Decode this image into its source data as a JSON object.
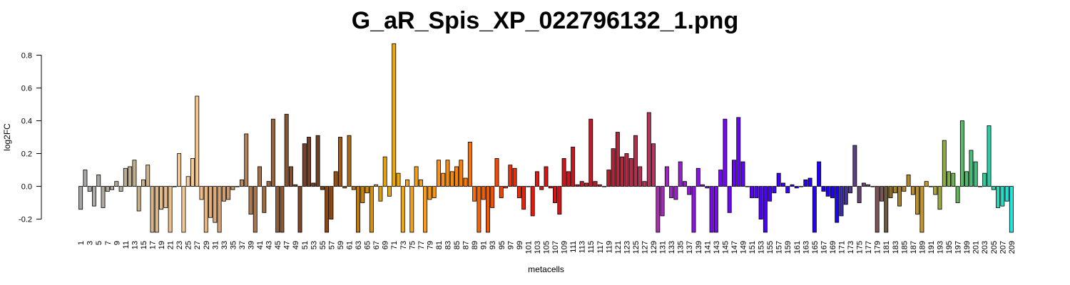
{
  "chart_data": {
    "type": "bar",
    "title": "G_aR_Spis_XP_022796132_1.png",
    "xlabel": "metacells",
    "ylabel": "log2FC",
    "ylim": [
      -0.28,
      0.88
    ],
    "yticks": [
      -0.2,
      0.0,
      0.2,
      0.4,
      0.6,
      0.8
    ],
    "ytick_labels": [
      "-0.2",
      "0.0",
      "0.2",
      "0.4",
      "0.6",
      "0.8"
    ],
    "grid": false,
    "legend": "none",
    "categories": [
      "1",
      "2",
      "3",
      "4",
      "5",
      "6",
      "7",
      "8",
      "9",
      "10",
      "11",
      "12",
      "13",
      "14",
      "15",
      "16",
      "17",
      "18",
      "19",
      "20",
      "21",
      "22",
      "23",
      "24",
      "25",
      "26",
      "27",
      "28",
      "29",
      "30",
      "31",
      "32",
      "33",
      "34",
      "35",
      "36",
      "37",
      "38",
      "39",
      "40",
      "41",
      "42",
      "43",
      "44",
      "45",
      "46",
      "47",
      "48",
      "49",
      "50",
      "51",
      "52",
      "53",
      "54",
      "55",
      "56",
      "57",
      "58",
      "59",
      "60",
      "61",
      "62",
      "63",
      "64",
      "65",
      "66",
      "67",
      "68",
      "69",
      "70",
      "71",
      "72",
      "73",
      "74",
      "75",
      "76",
      "77",
      "78",
      "79",
      "80",
      "81",
      "82",
      "83",
      "84",
      "85",
      "86",
      "87",
      "88",
      "89",
      "90",
      "91",
      "92",
      "93",
      "94",
      "95",
      "96",
      "97",
      "98",
      "99",
      "100",
      "101",
      "102",
      "103",
      "104",
      "105",
      "106",
      "107",
      "108",
      "109",
      "110",
      "111",
      "112",
      "113",
      "114",
      "115",
      "116",
      "117",
      "118",
      "119",
      "120",
      "121",
      "122",
      "123",
      "124",
      "125",
      "126",
      "127",
      "128",
      "129",
      "130",
      "131",
      "132",
      "133",
      "134",
      "135",
      "136",
      "137",
      "138",
      "139",
      "140",
      "141",
      "142",
      "143",
      "144",
      "145",
      "146",
      "147",
      "148",
      "149",
      "150",
      "151",
      "152",
      "153",
      "154",
      "155",
      "156",
      "157",
      "158",
      "159",
      "160",
      "161",
      "162",
      "163",
      "164",
      "165",
      "166",
      "167",
      "168",
      "169",
      "170",
      "171",
      "172",
      "173",
      "174",
      "175",
      "176",
      "177",
      "178",
      "179",
      "180",
      "181",
      "182",
      "183",
      "184",
      "185",
      "186",
      "187",
      "188",
      "189",
      "190",
      "191",
      "192",
      "193",
      "194",
      "195",
      "196",
      "197",
      "198",
      "199",
      "200",
      "201",
      "202",
      "203",
      "204",
      "205",
      "206",
      "207",
      "208",
      "209"
    ],
    "values": [
      -0.14,
      0.1,
      -0.03,
      -0.12,
      0.07,
      -0.13,
      -0.03,
      -0.02,
      0.03,
      -0.03,
      0.11,
      0.12,
      0.16,
      -0.15,
      0.04,
      0.13,
      -0.28,
      -0.28,
      -0.14,
      -0.13,
      -0.28,
      0.0,
      0.2,
      -0.28,
      0.06,
      0.17,
      0.55,
      -0.08,
      -0.28,
      -0.19,
      -0.22,
      -0.28,
      -0.09,
      -0.08,
      -0.02,
      0.0,
      0.04,
      0.32,
      -0.17,
      -0.28,
      0.12,
      -0.16,
      0.03,
      0.41,
      -0.28,
      -0.28,
      0.44,
      0.12,
      0.01,
      -0.28,
      0.26,
      0.3,
      0.02,
      0.31,
      -0.02,
      -0.28,
      -0.2,
      0.09,
      0.3,
      -0.01,
      0.31,
      -0.02,
      -0.28,
      -0.1,
      -0.04,
      -0.28,
      0.01,
      -0.09,
      0.18,
      -0.06,
      0.87,
      0.08,
      -0.28,
      0.04,
      -0.28,
      0.12,
      0.04,
      -0.28,
      -0.08,
      -0.07,
      0.16,
      0.08,
      0.16,
      0.09,
      0.12,
      0.16,
      0.05,
      0.27,
      -0.09,
      -0.28,
      -0.08,
      -0.28,
      -0.13,
      0.17,
      -0.07,
      -0.01,
      0.13,
      0.11,
      -0.07,
      -0.14,
      0.0,
      -0.18,
      0.09,
      -0.02,
      0.12,
      -0.01,
      -0.1,
      -0.17,
      0.17,
      0.09,
      0.24,
      0.01,
      0.03,
      0.02,
      0.41,
      0.03,
      0.01,
      0.0,
      0.1,
      0.23,
      0.33,
      0.18,
      0.2,
      0.17,
      0.31,
      0.12,
      0.03,
      0.45,
      0.26,
      -0.28,
      -0.18,
      0.12,
      -0.07,
      -0.08,
      0.15,
      0.03,
      -0.05,
      -0.28,
      0.11,
      0.01,
      -0.01,
      -0.28,
      -0.28,
      0.1,
      0.41,
      -0.16,
      0.16,
      0.42,
      0.15,
      0.0,
      -0.07,
      -0.07,
      -0.2,
      -0.28,
      -0.09,
      -0.04,
      0.08,
      0.02,
      -0.04,
      0.01,
      -0.01,
      0.0,
      0.04,
      0.05,
      -0.28,
      0.15,
      -0.03,
      -0.06,
      -0.07,
      -0.22,
      -0.18,
      -0.11,
      -0.04,
      0.25,
      -0.1,
      0.02,
      0.01,
      0.0,
      -0.28,
      -0.09,
      -0.28,
      -0.07,
      -0.04,
      -0.12,
      -0.03,
      0.07,
      -0.05,
      -0.17,
      -0.28,
      0.03,
      0.0,
      -0.05,
      -0.14,
      0.28,
      0.09,
      0.08,
      -0.1,
      0.4,
      0.09,
      0.22,
      0.15,
      0.0,
      0.08,
      0.37,
      -0.02,
      -0.13,
      -0.12,
      -0.09,
      -0.28
    ],
    "colors": [
      "#a5a5a5",
      "#a8a7a5",
      "#aaa9a5",
      "#acaaa4",
      "#ada9a1",
      "#afaa9f",
      "#b1aa9d",
      "#b3ab9b",
      "#b5ab98",
      "#b7ac96",
      "#baad94",
      "#bcae92",
      "#c0af8e",
      "#c5b08c",
      "#cab18a",
      "#d0b087",
      "#d6b488",
      "#dbb78a",
      "#e0bb8c",
      "#e5bd8c",
      "#eac08c",
      "#efc38d",
      "#f2c690",
      "#f5c994",
      "#f7cb98",
      "#f8cc9a",
      "#f5c48f",
      "#efbc88",
      "#e9b581",
      "#e3ae7b",
      "#ddaa77",
      "#d7a472",
      "#d09e6d",
      "#ca986a",
      "#c59364",
      "#bf8d5e",
      "#ba875a",
      "#b48154",
      "#ae7c50",
      "#a9774b",
      "#a47146",
      "#9f6c42",
      "#9b673e",
      "#96623a",
      "#925e37",
      "#8d5935",
      "#885432",
      "#844f30",
      "#7f4b2e",
      "#7b462b",
      "#764229",
      "#733f27",
      "#714026",
      "#6f4123",
      "#7e4216",
      "#8a4411",
      "#904912",
      "#985114",
      "#9f5914",
      "#a76114",
      "#ae6913",
      "#b77212",
      "#be7911",
      "#c6810f",
      "#cd890d",
      "#d4900b",
      "#da970a",
      "#df9c08",
      "#e4a109",
      "#e8a40b",
      "#eba60d",
      "#eda70f",
      "#f0a712",
      "#f2a514",
      "#f3a216",
      "#f59f17",
      "#f69c17",
      "#f79a16",
      "#f89814",
      "#f99512",
      "#fa9210",
      "#fb8f0e",
      "#fb8c0c",
      "#fb880a",
      "#fb8408",
      "#fb7f06",
      "#fa7905",
      "#f97204",
      "#f86c03",
      "#f76503",
      "#f55e03",
      "#f45704",
      "#f35004",
      "#f24a05",
      "#f04306",
      "#ef3c07",
      "#ed3508",
      "#ec2e09",
      "#eb280a",
      "#e9220b",
      "#e71d0c",
      "#e5190e",
      "#e2160f",
      "#df1411",
      "#dc1313",
      "#d91315",
      "#d61317",
      "#d31419",
      "#d0151b",
      "#cd161d",
      "#ca171f",
      "#c71821",
      "#c41923",
      "#c11b26",
      "#be1c28",
      "#bb1d2a",
      "#b81e2c",
      "#b51f2e",
      "#b22030",
      "#b12335",
      "#b2253a",
      "#b3273f",
      "#b42944",
      "#b52b49",
      "#b62d4e",
      "#b72f53",
      "#b83158",
      "#b9335d",
      "#ba3562",
      "#a530a9",
      "#a22cb8",
      "#9f28bf",
      "#9c25c5",
      "#9922cb",
      "#961fd1",
      "#931cd6",
      "#9019db",
      "#8d16e0",
      "#8913e4",
      "#8510e8",
      "#810def",
      "#7d0bf2",
      "#790af4",
      "#7509f5",
      "#7108f6",
      "#6d07f7",
      "#6806f8",
      "#6405f9",
      "#6004fa",
      "#5c03fb",
      "#5802fb",
      "#5402fc",
      "#5001fc",
      "#4c01fd",
      "#4800fd",
      "#4400fd",
      "#4000fd",
      "#3c00fd",
      "#3800fd",
      "#3400fd",
      "#3000fd",
      "#2d00fc",
      "#2a00fb",
      "#2700fa",
      "#2400f8",
      "#2200f6",
      "#2001f4",
      "#1f02f2",
      "#1e03f0",
      "#1d04ee",
      "#3a2fa9",
      "#453399",
      "#503a8a",
      "#5a407e",
      "#634571",
      "#6a4968",
      "#704d60",
      "#77505b",
      "#7c5457",
      "#80535a",
      "#6b5a3f",
      "#8c6d25",
      "#a27e25",
      "#a88125",
      "#ad8527",
      "#b28929",
      "#b78d2b",
      "#bc912d",
      "#c1952f",
      "#c59930",
      "#b7a02c",
      "#aaa532",
      "#9ba93a",
      "#8cab43",
      "#7eae4c",
      "#70b154",
      "#65b45c",
      "#5ab765",
      "#4fba6e",
      "#46be78",
      "#3ec282",
      "#37c68d",
      "#31cb99",
      "#2ccfa5",
      "#28d4b1",
      "#25d9bd",
      "#22dec9",
      "#1fe3d4",
      "#1ce8de",
      "#1aede8",
      "#18f2ef",
      "#16f6f5"
    ]
  }
}
